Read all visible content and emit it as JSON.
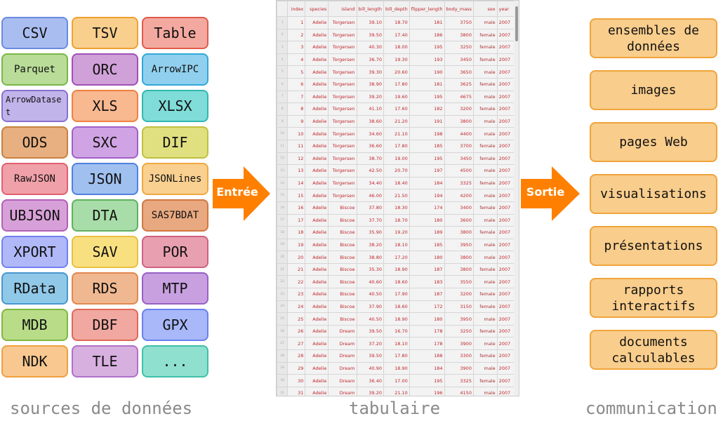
{
  "sources": [
    {
      "label": "CSV",
      "fill": "#aabdf0",
      "border": "#6b8be0"
    },
    {
      "label": "TSV",
      "fill": "#f9cf8e",
      "border": "#f0a030"
    },
    {
      "label": "Table",
      "fill": "#f4a9a0",
      "border": "#e05a4a"
    },
    {
      "label": "Parquet",
      "fill": "#b9dc98",
      "border": "#7ab648"
    },
    {
      "label": "ORC",
      "fill": "#d0a0d8",
      "border": "#a050b8"
    },
    {
      "label": "ArrowIPC",
      "fill": "#90d0ee",
      "border": "#30a8d8"
    },
    {
      "label": "ArrowDataset",
      "fill": "#c0b4ea",
      "border": "#8870d0"
    },
    {
      "label": "XLS",
      "fill": "#f8b890",
      "border": "#f08040"
    },
    {
      "label": "XLSX",
      "fill": "#80dcd8",
      "border": "#30b8b0"
    },
    {
      "label": "ODS",
      "fill": "#e8b080",
      "border": "#c88040"
    },
    {
      "label": "SXC",
      "fill": "#d0a4e4",
      "border": "#a060c8"
    },
    {
      "label": "DIF",
      "fill": "#e0e080",
      "border": "#c0c040"
    },
    {
      "label": "RawJSON",
      "fill": "#f0a0a8",
      "border": "#e06070"
    },
    {
      "label": "JSON",
      "fill": "#a0c0f0",
      "border": "#5080e0"
    },
    {
      "label": "JSONLines",
      "fill": "#f9d090",
      "border": "#f0a840"
    },
    {
      "label": "UBJSON",
      "fill": "#d8a0d8",
      "border": "#b060b8"
    },
    {
      "label": "DTA",
      "fill": "#a8dca8",
      "border": "#60b060"
    },
    {
      "label": "SAS7BDAT",
      "fill": "#e8a880",
      "border": "#d07840"
    },
    {
      "label": "XPORT",
      "fill": "#b0b8f8",
      "border": "#7080f0"
    },
    {
      "label": "SAV",
      "fill": "#f8e080",
      "border": "#e8c040"
    },
    {
      "label": "POR",
      "fill": "#e8a0b0",
      "border": "#d06080"
    },
    {
      "label": "RData",
      "fill": "#90c8e8",
      "border": "#4898d0"
    },
    {
      "label": "RDS",
      "fill": "#f0b890",
      "border": "#e08850"
    },
    {
      "label": "MTP",
      "fill": "#c8a0e0",
      "border": "#9860c8"
    },
    {
      "label": "MDB",
      "fill": "#b8dc88",
      "border": "#80b840"
    },
    {
      "label": "DBF",
      "fill": "#f0a8a0",
      "border": "#e06858"
    },
    {
      "label": "GPX",
      "fill": "#a8b8f8",
      "border": "#6880f0"
    },
    {
      "label": "NDK",
      "fill": "#f8c890",
      "border": "#f0a040"
    },
    {
      "label": "TLE",
      "fill": "#d8b0e0",
      "border": "#b070c8"
    },
    {
      "label": "...",
      "fill": "#90e0d0",
      "border": "#40c0a8"
    }
  ],
  "arrows": {
    "input": "Entrée",
    "output": "Sortie",
    "color": "#ff8000"
  },
  "table": {
    "columns": [
      "index",
      "species",
      "island",
      "bill_length",
      "bill_depth",
      "flipper_length",
      "body_mass",
      "sex",
      "year"
    ],
    "rows": [
      [
        1,
        "Adelie",
        "Torgersen",
        "39.10",
        "18.70",
        181,
        3750,
        "male",
        2007
      ],
      [
        2,
        "Adelie",
        "Torgersen",
        "39.50",
        "17.40",
        186,
        3800,
        "female",
        2007
      ],
      [
        3,
        "Adelie",
        "Torgersen",
        "40.30",
        "18.00",
        195,
        3250,
        "female",
        2007
      ],
      [
        4,
        "Adelie",
        "Torgersen",
        "36.70",
        "19.30",
        193,
        3450,
        "female",
        2007
      ],
      [
        5,
        "Adelie",
        "Torgersen",
        "39.30",
        "20.60",
        190,
        3650,
        "male",
        2007
      ],
      [
        6,
        "Adelie",
        "Torgersen",
        "38.90",
        "17.80",
        181,
        3625,
        "female",
        2007
      ],
      [
        7,
        "Adelie",
        "Torgersen",
        "39.20",
        "19.60",
        195,
        4675,
        "male",
        2007
      ],
      [
        8,
        "Adelie",
        "Torgersen",
        "41.10",
        "17.60",
        182,
        3200,
        "female",
        2007
      ],
      [
        9,
        "Adelie",
        "Torgersen",
        "38.60",
        "21.20",
        191,
        3800,
        "male",
        2007
      ],
      [
        10,
        "Adelie",
        "Torgersen",
        "34.60",
        "21.10",
        198,
        4400,
        "male",
        2007
      ],
      [
        11,
        "Adelie",
        "Torgersen",
        "36.60",
        "17.80",
        185,
        3700,
        "female",
        2007
      ],
      [
        12,
        "Adelie",
        "Torgersen",
        "38.70",
        "19.00",
        195,
        3450,
        "female",
        2007
      ],
      [
        13,
        "Adelie",
        "Torgersen",
        "42.50",
        "20.70",
        197,
        4500,
        "male",
        2007
      ],
      [
        14,
        "Adelie",
        "Torgersen",
        "34.40",
        "18.40",
        184,
        3325,
        "female",
        2007
      ],
      [
        15,
        "Adelie",
        "Torgersen",
        "46.00",
        "21.50",
        194,
        4200,
        "male",
        2007
      ],
      [
        16,
        "Adelie",
        "Biscoe",
        "37.80",
        "18.30",
        174,
        3400,
        "female",
        2007
      ],
      [
        17,
        "Adelie",
        "Biscoe",
        "37.70",
        "18.70",
        180,
        3600,
        "male",
        2007
      ],
      [
        18,
        "Adelie",
        "Biscoe",
        "35.90",
        "19.20",
        189,
        3800,
        "female",
        2007
      ],
      [
        19,
        "Adelie",
        "Biscoe",
        "38.20",
        "18.10",
        185,
        3950,
        "male",
        2007
      ],
      [
        20,
        "Adelie",
        "Biscoe",
        "38.80",
        "17.20",
        180,
        3800,
        "male",
        2007
      ],
      [
        21,
        "Adelie",
        "Biscoe",
        "35.30",
        "18.90",
        187,
        3800,
        "female",
        2007
      ],
      [
        22,
        "Adelie",
        "Biscoe",
        "40.60",
        "18.60",
        183,
        3550,
        "male",
        2007
      ],
      [
        23,
        "Adelie",
        "Biscoe",
        "40.50",
        "17.90",
        187,
        3200,
        "female",
        2007
      ],
      [
        24,
        "Adelie",
        "Biscoe",
        "37.90",
        "18.60",
        172,
        3150,
        "female",
        2007
      ],
      [
        25,
        "Adelie",
        "Biscoe",
        "40.50",
        "18.90",
        180,
        3950,
        "male",
        2007
      ],
      [
        26,
        "Adelie",
        "Dream",
        "39.50",
        "16.70",
        178,
        3250,
        "female",
        2007
      ],
      [
        27,
        "Adelie",
        "Dream",
        "37.20",
        "18.10",
        178,
        3900,
        "male",
        2007
      ],
      [
        28,
        "Adelie",
        "Dream",
        "39.50",
        "17.80",
        188,
        3300,
        "female",
        2007
      ],
      [
        29,
        "Adelie",
        "Dream",
        "40.90",
        "18.90",
        184,
        3900,
        "male",
        2007
      ],
      [
        30,
        "Adelie",
        "Dream",
        "36.40",
        "17.00",
        195,
        3325,
        "female",
        2007
      ],
      [
        31,
        "Adelie",
        "Dream",
        "39.20",
        "21.10",
        196,
        4150,
        "male",
        2007
      ]
    ]
  },
  "outputs": [
    "ensembles de données",
    "images",
    "pages Web",
    "visualisations",
    "présentations",
    "rapports interactifs",
    "documents calculables"
  ],
  "captions": {
    "sources": "sources de données",
    "tabular": "tabulaire",
    "communication": "communication"
  }
}
